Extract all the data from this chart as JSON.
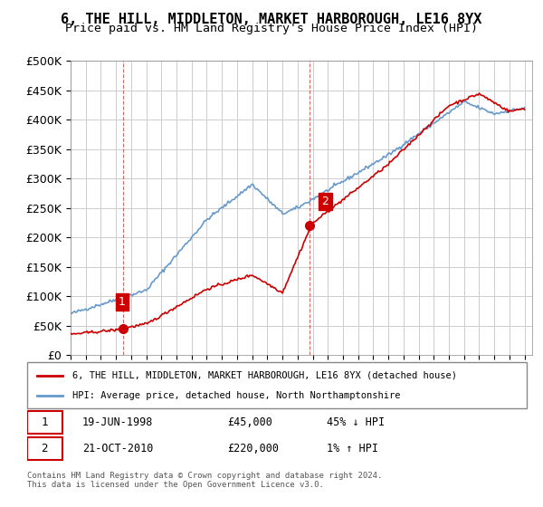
{
  "title": "6, THE HILL, MIDDLETON, MARKET HARBOROUGH, LE16 8YX",
  "subtitle": "Price paid vs. HM Land Registry's House Price Index (HPI)",
  "ylabel_ticks": [
    "£0",
    "£50K",
    "£100K",
    "£150K",
    "£200K",
    "£250K",
    "£300K",
    "£350K",
    "£400K",
    "£450K",
    "£500K"
  ],
  "ytick_values": [
    0,
    50000,
    100000,
    150000,
    200000,
    250000,
    300000,
    350000,
    400000,
    450000,
    500000
  ],
  "ylim": [
    0,
    500000
  ],
  "xlim_start": 1995.0,
  "xlim_end": 2025.5,
  "background_color": "#ffffff",
  "plot_bg_color": "#ffffff",
  "grid_color": "#cccccc",
  "red_line_color": "#cc0000",
  "blue_line_color": "#6699cc",
  "purchase1_year": 1998.46,
  "purchase1_price": 45000,
  "purchase2_year": 2010.8,
  "purchase2_price": 220000,
  "legend_label_red": "6, THE HILL, MIDDLETON, MARKET HARBOROUGH, LE16 8YX (detached house)",
  "legend_label_blue": "HPI: Average price, detached house, North Northamptonshire",
  "annotation1_num": "1",
  "annotation1_date": "19-JUN-1998",
  "annotation1_price": "£45,000",
  "annotation1_hpi": "45% ↓ HPI",
  "annotation2_num": "2",
  "annotation2_date": "21-OCT-2010",
  "annotation2_price": "£220,000",
  "annotation2_hpi": "1% ↑ HPI",
  "footer": "Contains HM Land Registry data © Crown copyright and database right 2024.\nThis data is licensed under the Open Government Licence v3.0."
}
